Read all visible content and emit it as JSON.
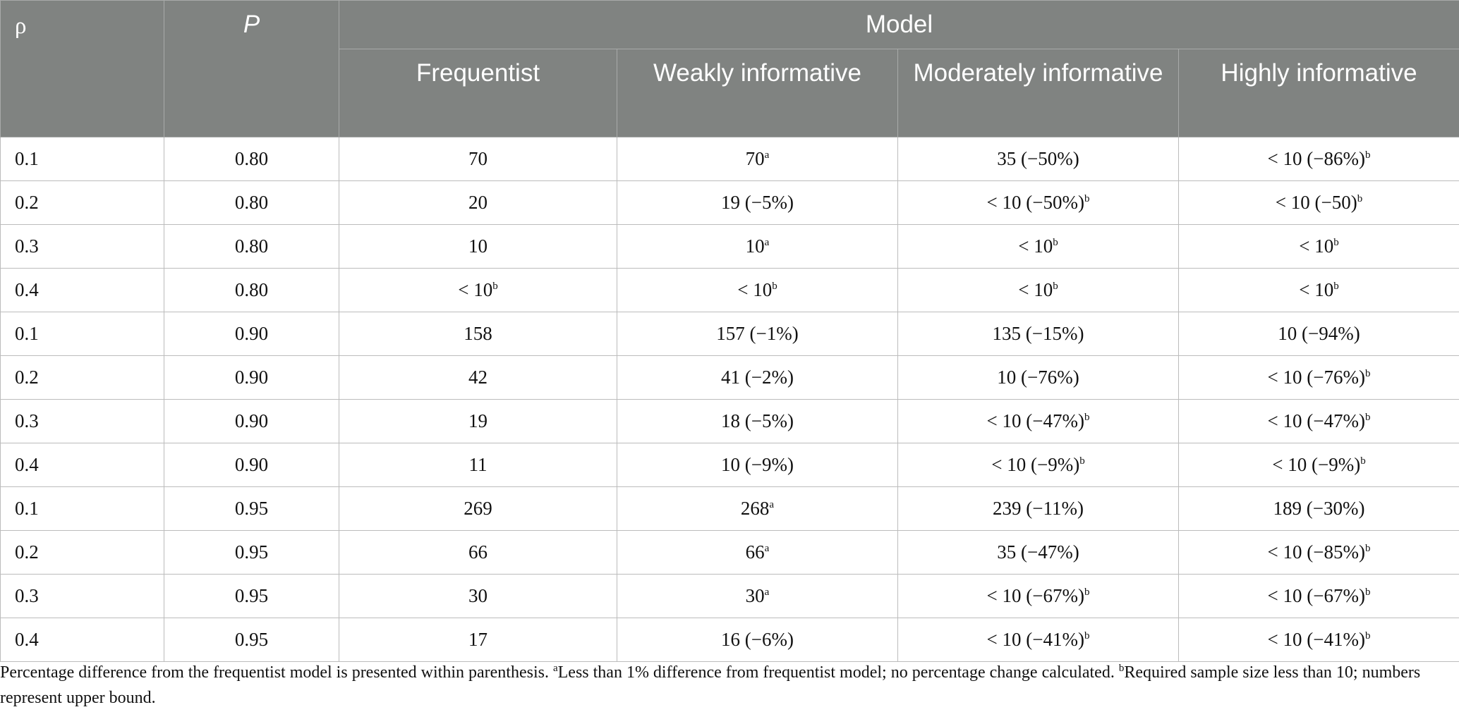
{
  "header": {
    "rho": "ρ",
    "p": "P",
    "model": "Model",
    "columns": [
      "Frequentist",
      "Weakly informative",
      "Moderately informative",
      "Highly informative"
    ]
  },
  "rows": [
    {
      "rho": "0.1",
      "p": "0.80",
      "freq": "70",
      "weak": "70",
      "weak_sup": "a",
      "mod": "35 (−50%)",
      "mod_sup": "",
      "high": "< 10 (−86%)",
      "high_sup": "b"
    },
    {
      "rho": "0.2",
      "p": "0.80",
      "freq": "20",
      "weak": "19 (−5%)",
      "weak_sup": "",
      "mod": "< 10 (−50%)",
      "mod_sup": "b",
      "high": "< 10 (−50)",
      "high_sup": "b"
    },
    {
      "rho": "0.3",
      "p": "0.80",
      "freq": "10",
      "weak": "10",
      "weak_sup": "a",
      "mod": "< 10",
      "mod_sup": "b",
      "high": "< 10",
      "high_sup": "b"
    },
    {
      "rho": "0.4",
      "p": "0.80",
      "freq": "< 10",
      "freq_sup": "b",
      "weak": "< 10",
      "weak_sup": "b",
      "mod": "< 10",
      "mod_sup": "b",
      "high": "< 10",
      "high_sup": "b"
    },
    {
      "rho": "0.1",
      "p": "0.90",
      "freq": "158",
      "weak": "157 (−1%)",
      "weak_sup": "",
      "mod": "135 (−15%)",
      "mod_sup": "",
      "high": "10 (−94%)",
      "high_sup": ""
    },
    {
      "rho": "0.2",
      "p": "0.90",
      "freq": "42",
      "weak": "41 (−2%)",
      "weak_sup": "",
      "mod": "10 (−76%)",
      "mod_sup": "",
      "high": "< 10 (−76%)",
      "high_sup": "b"
    },
    {
      "rho": "0.3",
      "p": "0.90",
      "freq": "19",
      "weak": "18 (−5%)",
      "weak_sup": "",
      "mod": "< 10 (−47%)",
      "mod_sup": "b",
      "high": "< 10 (−47%)",
      "high_sup": "b"
    },
    {
      "rho": "0.4",
      "p": "0.90",
      "freq": "11",
      "weak": "10 (−9%)",
      "weak_sup": "",
      "mod": "< 10 (−9%)",
      "mod_sup": "b",
      "high": "< 10 (−9%)",
      "high_sup": "b"
    },
    {
      "rho": "0.1",
      "p": "0.95",
      "freq": "269",
      "weak": "268",
      "weak_sup": "a",
      "mod": "239 (−11%)",
      "mod_sup": "",
      "high": "189 (−30%)",
      "high_sup": ""
    },
    {
      "rho": "0.2",
      "p": "0.95",
      "freq": "66",
      "weak": "66",
      "weak_sup": "a",
      "mod": "35 (−47%)",
      "mod_sup": "",
      "high": "< 10 (−85%)",
      "high_sup": "b"
    },
    {
      "rho": "0.3",
      "p": "0.95",
      "freq": "30",
      "weak": "30",
      "weak_sup": "a",
      "mod": "< 10 (−67%)",
      "mod_sup": "b",
      "high": "< 10 (−67%)",
      "high_sup": "b"
    },
    {
      "rho": "0.4",
      "p": "0.95",
      "freq": "17",
      "weak": "16 (−6%)",
      "weak_sup": "",
      "mod": "< 10 (−41%)",
      "mod_sup": "b",
      "high": "< 10 (−41%)",
      "high_sup": "b"
    }
  ],
  "footnote": {
    "intro": "Percentage difference from the frequentist model is presented within parenthesis. ",
    "a_mark": "a",
    "a_text": "Less than 1% difference from frequentist model; no percentage change calculated. ",
    "b_mark": "b",
    "b_text": "Required sample size less than 10; numbers represent upper bound."
  }
}
